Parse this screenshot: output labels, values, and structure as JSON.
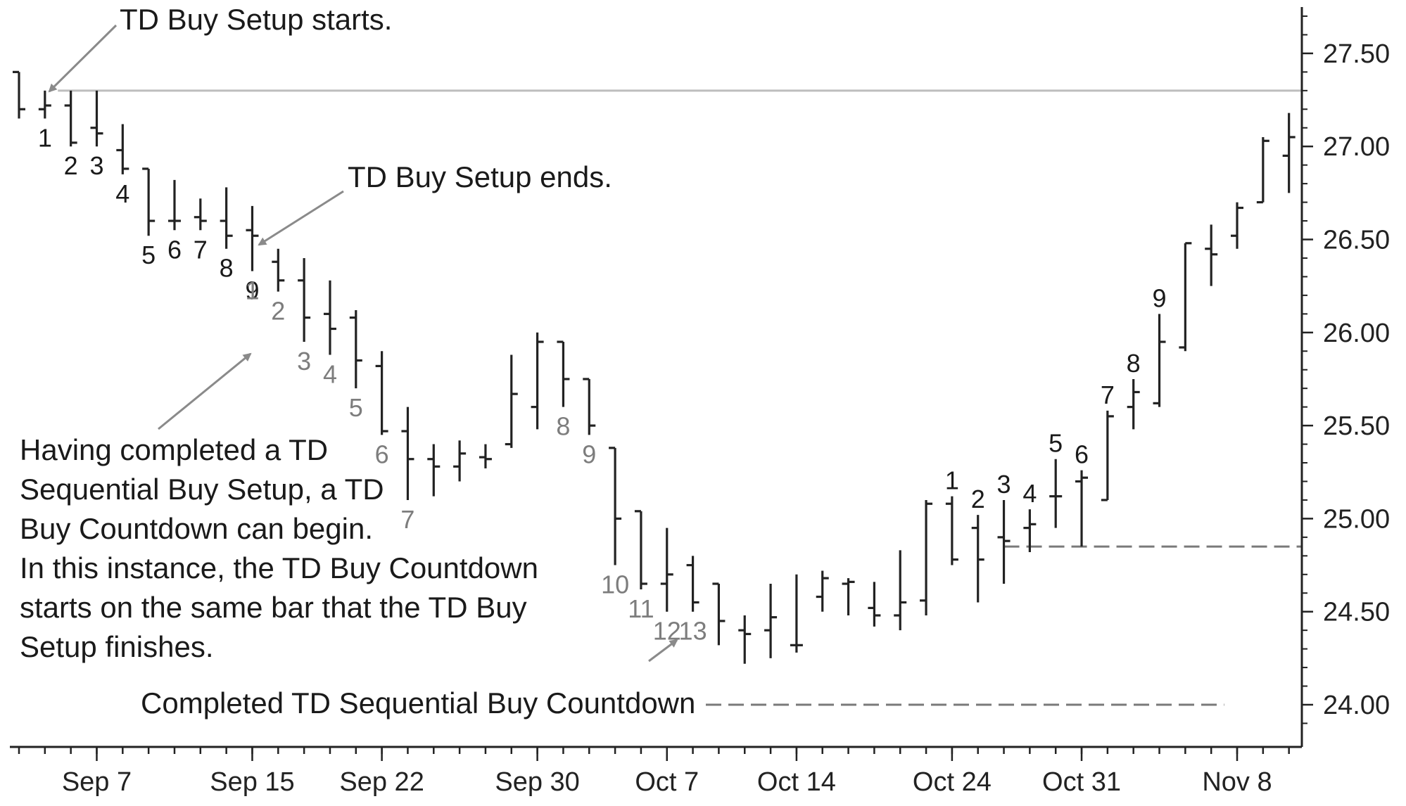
{
  "chart_data": {
    "type": "ohlc",
    "title": "",
    "xlabel": "",
    "ylabel": "",
    "ylim": [
      23.8,
      27.8
    ],
    "y_ticks": [
      {
        "value": 24.0,
        "label": "24.00"
      },
      {
        "value": 24.5,
        "label": "24.50"
      },
      {
        "value": 25.0,
        "label": "25.00"
      },
      {
        "value": 25.5,
        "label": "25.50"
      },
      {
        "value": 26.0,
        "label": "26.00"
      },
      {
        "value": 26.5,
        "label": "26.50"
      },
      {
        "value": 27.0,
        "label": "27.00"
      },
      {
        "value": 27.5,
        "label": "27.50"
      }
    ],
    "x_labels": [
      {
        "bar": 3,
        "label": "Sep 7"
      },
      {
        "bar": 9,
        "label": "Sep 15"
      },
      {
        "bar": 14,
        "label": "Sep 22"
      },
      {
        "bar": 20,
        "label": "Sep 30"
      },
      {
        "bar": 25,
        "label": "Oct 7"
      },
      {
        "bar": 30,
        "label": "Oct 14"
      },
      {
        "bar": 36,
        "label": "Oct 24"
      },
      {
        "bar": 41,
        "label": "Oct 31"
      },
      {
        "bar": 47,
        "label": "Nov 8"
      }
    ],
    "bar_count": 50,
    "bars": [
      {
        "o": 27.4,
        "h": 27.4,
        "l": 27.15,
        "c": 27.2
      },
      {
        "o": 27.2,
        "h": 27.3,
        "l": 27.15,
        "c": 27.22
      },
      {
        "o": 27.22,
        "h": 27.3,
        "l": 27.0,
        "c": 27.02
      },
      {
        "o": 27.1,
        "h": 27.3,
        "l": 27.0,
        "c": 27.07
      },
      {
        "o": 26.98,
        "h": 27.12,
        "l": 26.85,
        "c": 26.88
      },
      {
        "o": 26.88,
        "h": 26.88,
        "l": 26.52,
        "c": 26.6
      },
      {
        "o": 26.6,
        "h": 26.82,
        "l": 26.55,
        "c": 26.6
      },
      {
        "o": 26.62,
        "h": 26.72,
        "l": 26.55,
        "c": 26.6
      },
      {
        "o": 26.6,
        "h": 26.78,
        "l": 26.45,
        "c": 26.52
      },
      {
        "o": 26.55,
        "h": 26.68,
        "l": 26.33,
        "c": 26.52
      },
      {
        "o": 26.38,
        "h": 26.45,
        "l": 26.22,
        "c": 26.28
      },
      {
        "o": 26.28,
        "h": 26.4,
        "l": 25.95,
        "c": 26.08
      },
      {
        "o": 26.1,
        "h": 26.28,
        "l": 25.88,
        "c": 26.02
      },
      {
        "o": 26.08,
        "h": 26.12,
        "l": 25.7,
        "c": 25.85
      },
      {
        "o": 25.82,
        "h": 25.9,
        "l": 25.45,
        "c": 25.47
      },
      {
        "o": 25.47,
        "h": 25.6,
        "l": 25.1,
        "c": 25.32
      },
      {
        "o": 25.32,
        "h": 25.4,
        "l": 25.12,
        "c": 25.28
      },
      {
        "o": 25.28,
        "h": 25.42,
        "l": 25.2,
        "c": 25.35
      },
      {
        "o": 25.33,
        "h": 25.4,
        "l": 25.27,
        "c": 25.32
      },
      {
        "o": 25.4,
        "h": 25.88,
        "l": 25.38,
        "c": 25.67
      },
      {
        "o": 25.6,
        "h": 26.0,
        "l": 25.48,
        "c": 25.95
      },
      {
        "o": 25.95,
        "h": 25.95,
        "l": 25.6,
        "c": 25.75
      },
      {
        "o": 25.75,
        "h": 25.75,
        "l": 25.45,
        "c": 25.5
      },
      {
        "o": 25.38,
        "h": 25.38,
        "l": 24.75,
        "c": 25.0
      },
      {
        "o": 25.04,
        "h": 25.04,
        "l": 24.62,
        "c": 24.65
      },
      {
        "o": 24.65,
        "h": 24.95,
        "l": 24.5,
        "c": 24.7
      },
      {
        "o": 24.75,
        "h": 24.8,
        "l": 24.5,
        "c": 24.55
      },
      {
        "o": 24.65,
        "h": 24.65,
        "l": 24.32,
        "c": 24.45
      },
      {
        "o": 24.4,
        "h": 24.48,
        "l": 24.22,
        "c": 24.38
      },
      {
        "o": 24.4,
        "h": 24.65,
        "l": 24.25,
        "c": 24.47
      },
      {
        "o": 24.32,
        "h": 24.7,
        "l": 24.28,
        "c": 24.32
      },
      {
        "o": 24.58,
        "h": 24.72,
        "l": 24.5,
        "c": 24.68
      },
      {
        "o": 24.65,
        "h": 24.68,
        "l": 24.48,
        "c": 24.66
      },
      {
        "o": 24.52,
        "h": 24.66,
        "l": 24.42,
        "c": 24.48
      },
      {
        "o": 24.48,
        "h": 24.83,
        "l": 24.4,
        "c": 24.55
      },
      {
        "o": 24.56,
        "h": 25.1,
        "l": 24.48,
        "c": 25.08
      },
      {
        "o": 25.08,
        "h": 25.12,
        "l": 24.75,
        "c": 24.78
      },
      {
        "o": 24.95,
        "h": 25.02,
        "l": 24.55,
        "c": 24.78
      },
      {
        "o": 24.9,
        "h": 25.1,
        "l": 24.65,
        "c": 24.88
      },
      {
        "o": 24.95,
        "h": 25.05,
        "l": 24.82,
        "c": 24.97
      },
      {
        "o": 25.12,
        "h": 25.32,
        "l": 24.95,
        "c": 25.12
      },
      {
        "o": 25.2,
        "h": 25.26,
        "l": 24.85,
        "c": 25.22
      },
      {
        "o": 25.1,
        "h": 25.58,
        "l": 25.1,
        "c": 25.55
      },
      {
        "o": 25.6,
        "h": 25.75,
        "l": 25.48,
        "c": 25.68
      },
      {
        "o": 25.62,
        "h": 26.1,
        "l": 25.6,
        "c": 25.95
      },
      {
        "o": 25.92,
        "h": 26.48,
        "l": 25.9,
        "c": 26.48
      },
      {
        "o": 26.45,
        "h": 26.58,
        "l": 26.25,
        "c": 26.42
      },
      {
        "o": 26.52,
        "h": 26.7,
        "l": 26.45,
        "c": 26.67
      },
      {
        "o": 26.7,
        "h": 27.05,
        "l": 26.7,
        "c": 27.03
      },
      {
        "o": 26.95,
        "h": 27.18,
        "l": 26.75,
        "c": 27.05
      }
    ],
    "setup_labels_dark": [
      {
        "bar": 1,
        "text": "1"
      },
      {
        "bar": 2,
        "text": "2"
      },
      {
        "bar": 3,
        "text": "3"
      },
      {
        "bar": 4,
        "text": "4"
      },
      {
        "bar": 5,
        "text": "5"
      },
      {
        "bar": 6,
        "text": "6"
      },
      {
        "bar": 7,
        "text": "7"
      },
      {
        "bar": 8,
        "text": "8"
      },
      {
        "bar": 9,
        "text": "9"
      },
      {
        "bar": 36,
        "text": "1"
      },
      {
        "bar": 37,
        "text": "2"
      },
      {
        "bar": 38,
        "text": "3"
      },
      {
        "bar": 39,
        "text": "4"
      },
      {
        "bar": 40,
        "text": "5"
      },
      {
        "bar": 41,
        "text": "6"
      },
      {
        "bar": 42,
        "text": "7"
      },
      {
        "bar": 43,
        "text": "8"
      },
      {
        "bar": 44,
        "text": "9"
      }
    ],
    "countdown_labels": [
      {
        "bar": 9,
        "text": "1"
      },
      {
        "bar": 10,
        "text": "2"
      },
      {
        "bar": 11,
        "text": "3"
      },
      {
        "bar": 12,
        "text": "4"
      },
      {
        "bar": 13,
        "text": "5"
      },
      {
        "bar": 14,
        "text": "6"
      },
      {
        "bar": 15,
        "text": "7"
      },
      {
        "bar": 21,
        "text": "8"
      },
      {
        "bar": 22,
        "text": "9"
      },
      {
        "bar": 23,
        "text": "10"
      },
      {
        "bar": 24,
        "text": "11"
      },
      {
        "bar": 25,
        "text": "12"
      },
      {
        "bar": 26,
        "text": "13"
      }
    ],
    "reference_lines": [
      {
        "name": "setup-resistance-line",
        "y": 27.3,
        "from_bar": 1.5,
        "to_bar": 49.5,
        "style": "solid",
        "color": "#bdbdbd"
      },
      {
        "name": "setup-low-line",
        "y": 24.85,
        "from_bar": 38,
        "to_bar": 49.5,
        "style": "dashed",
        "color": "#7a7a7a"
      },
      {
        "name": "countdown-completion-line",
        "y": 24.0,
        "from_bar": 26.5,
        "to_bar": 46.5,
        "style": "dashed",
        "color": "#7a7a7a"
      }
    ],
    "annotations": {
      "setup_starts": "TD Buy Setup starts.",
      "setup_ends": "TD Buy Setup ends.",
      "countdown_note": [
        "Having completed a TD",
        "Sequential Buy Setup, a TD",
        "Buy Countdown can begin.",
        "In this instance, the TD Buy Countdown",
        "starts on the same bar that the TD Buy",
        "Setup finishes."
      ],
      "completed_countdown": "Completed TD Sequential Buy Countdown"
    },
    "colors": {
      "bars": "#222222",
      "dark_labels": "#1a1a1a",
      "countdown_labels": "#7d7d7d",
      "arrows": "#8a8a8a",
      "axes": "#222222"
    }
  }
}
